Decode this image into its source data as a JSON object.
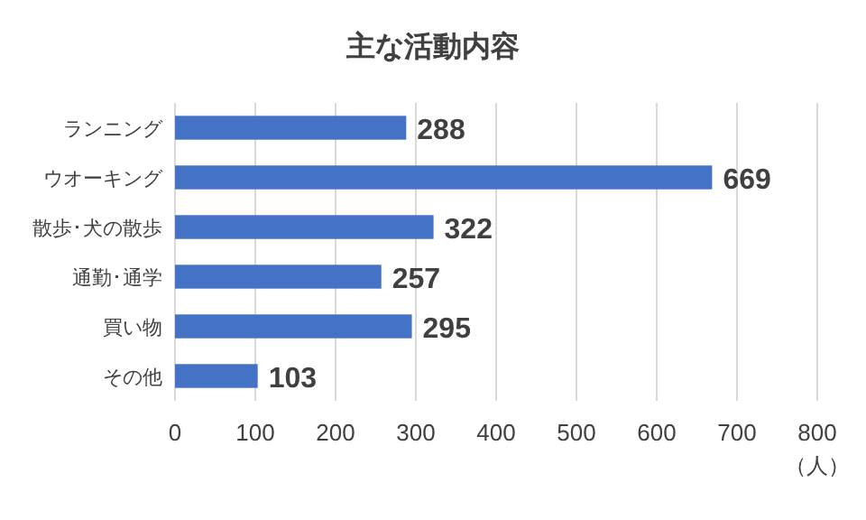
{
  "chart_data": {
    "type": "bar",
    "orientation": "horizontal",
    "title": "主な活動内容",
    "xlabel": "（人）",
    "categories": [
      "ランニング",
      "ウオーキング",
      "散歩･犬の散歩",
      "通勤･通学",
      "買い物",
      "その他"
    ],
    "values": [
      288,
      669,
      322,
      257,
      295,
      103
    ],
    "color": "#4472c4",
    "xlim": [
      0,
      800
    ],
    "xticks": [
      0,
      100,
      200,
      300,
      400,
      500,
      600,
      700,
      800
    ],
    "grid": "x",
    "data_labels": true
  }
}
